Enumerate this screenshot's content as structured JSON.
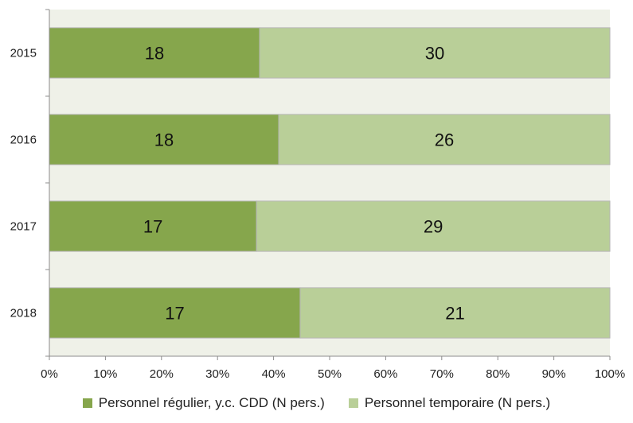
{
  "chart_data": {
    "type": "bar",
    "orientation": "horizontal",
    "stacked": "percent",
    "categories": [
      "2015",
      "2016",
      "2017",
      "2018"
    ],
    "series": [
      {
        "name": "Personnel régulier, y.c. CDD (N pers.)",
        "values": [
          18,
          18,
          17,
          17
        ],
        "color": "#86a64c"
      },
      {
        "name": "Personnel temporaire (N pers.)",
        "values": [
          30,
          26,
          29,
          21
        ],
        "color": "#b9cf98"
      }
    ],
    "x_ticks": [
      "0%",
      "10%",
      "20%",
      "30%",
      "40%",
      "50%",
      "60%",
      "70%",
      "80%",
      "90%",
      "100%"
    ],
    "xlim": [
      0,
      100
    ],
    "plot_background": "#eff1e8",
    "bar_border_color": "#b5b5b5",
    "legend_position": "bottom",
    "grid": false
  }
}
